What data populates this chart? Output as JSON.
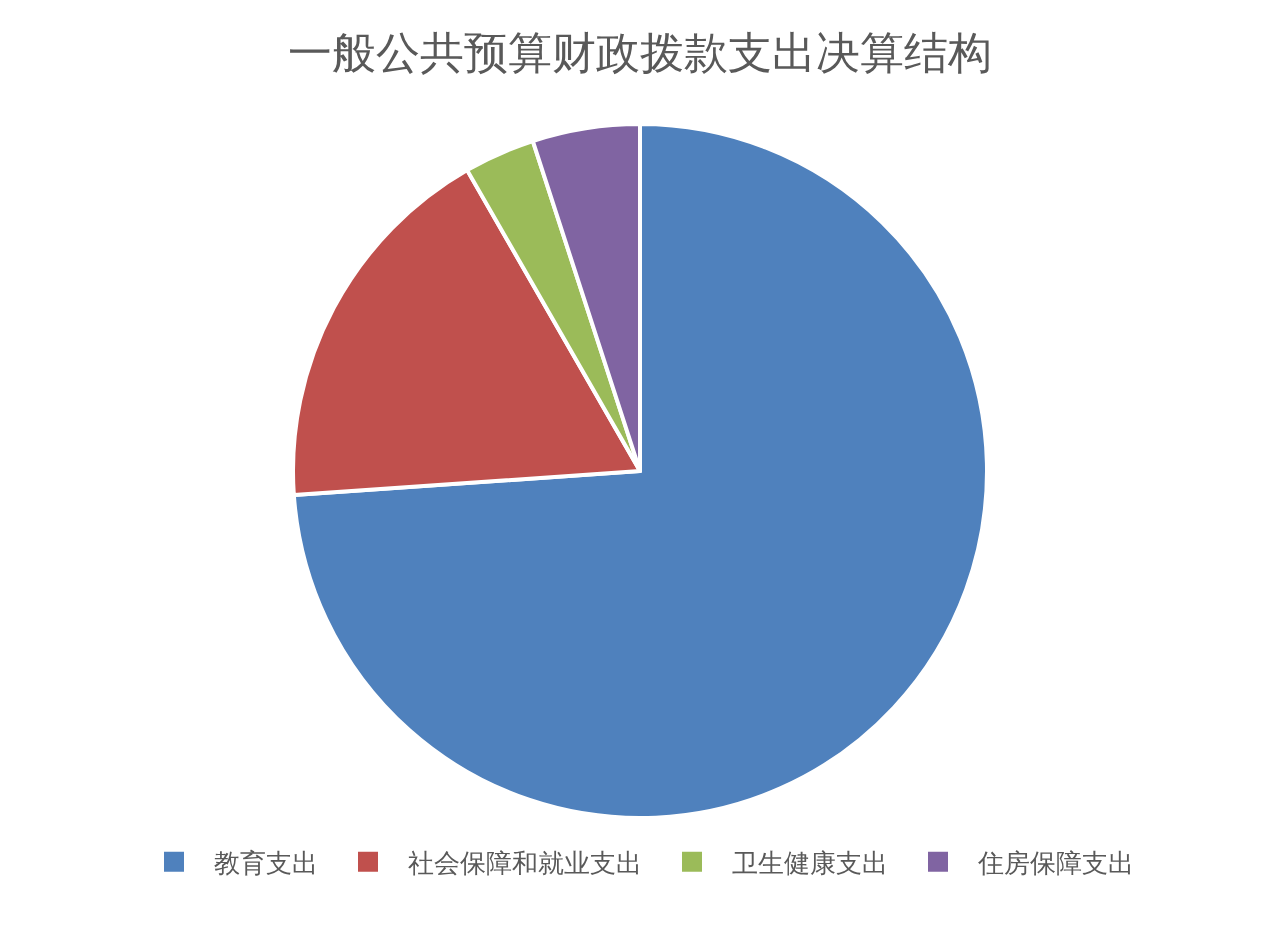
{
  "chart_data": {
    "type": "pie",
    "title": "一般公共预算财政拨款支出决算结构",
    "categories": [
      "教育支出",
      "社会保障和就业支出",
      "卫生健康支出",
      "住房保障支出"
    ],
    "values": [
      73.9,
      17.8,
      3.3,
      5.0
    ],
    "colors": [
      "#4f81bd",
      "#c0504d",
      "#9bbb59",
      "#8064a2"
    ],
    "legend": "bottom"
  }
}
